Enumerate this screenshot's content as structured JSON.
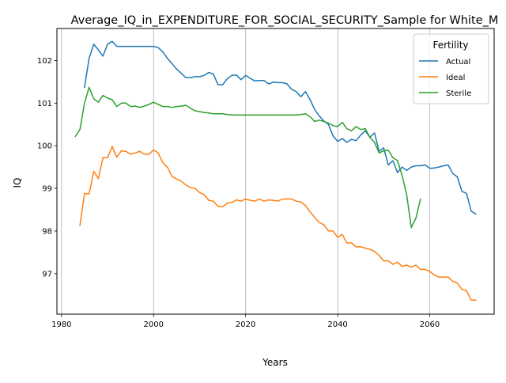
{
  "chart_data": {
    "type": "line",
    "title": "Average_IQ_in_EXPENDITURE_FOR_SOCIAL_SECURITY_Sample for White_M",
    "xlabel": "Years",
    "ylabel": "IQ",
    "xlim": [
      1979,
      2074
    ],
    "ylim": [
      96.05,
      102.75
    ],
    "xticks": [
      1980,
      2000,
      2020,
      2040,
      2060
    ],
    "yticks": [
      97,
      98,
      99,
      100,
      101,
      102
    ],
    "grid": "vertical",
    "legend": {
      "title": "Fertility",
      "placement": "top-right"
    },
    "series": [
      {
        "name": "Actual",
        "color": "#1f77b4",
        "x": [
          1985,
          1986,
          1987,
          1988,
          1989,
          1990,
          1991,
          1992,
          1993,
          1994,
          1995,
          1996,
          1997,
          1998,
          1999,
          2000,
          2001,
          2002,
          2003,
          2004,
          2005,
          2006,
          2007,
          2008,
          2009,
          2010,
          2011,
          2012,
          2013,
          2014,
          2015,
          2016,
          2017,
          2018,
          2019,
          2020,
          2021,
          2022,
          2023,
          2024,
          2025,
          2026,
          2027,
          2028,
          2029,
          2030,
          2031,
          2032,
          2033,
          2034,
          2035,
          2036,
          2037,
          2038,
          2039,
          2040,
          2041,
          2042,
          2043,
          2044,
          2045,
          2046,
          2047,
          2048,
          2049,
          2050,
          2051,
          2052,
          2053,
          2054,
          2055,
          2056,
          2057,
          2058,
          2059,
          2060,
          2061,
          2062,
          2063,
          2064,
          2065,
          2066,
          2067,
          2068,
          2069,
          2070
        ],
        "values": [
          101.37,
          102.05,
          102.38,
          102.25,
          102.1,
          102.38,
          102.45,
          102.33,
          102.33,
          102.33,
          102.33,
          102.33,
          102.33,
          102.33,
          102.33,
          102.33,
          102.3,
          102.2,
          102.05,
          101.93,
          101.8,
          101.7,
          101.6,
          101.6,
          101.62,
          101.62,
          101.65,
          101.72,
          101.68,
          101.43,
          101.43,
          101.57,
          101.65,
          101.66,
          101.55,
          101.65,
          101.58,
          101.52,
          101.53,
          101.53,
          101.45,
          101.49,
          101.48,
          101.48,
          101.45,
          101.32,
          101.27,
          101.15,
          101.27,
          101.08,
          100.85,
          100.7,
          100.58,
          100.5,
          100.23,
          100.1,
          100.17,
          100.08,
          100.15,
          100.12,
          100.25,
          100.35,
          100.2,
          100.3,
          99.87,
          99.95,
          99.55,
          99.65,
          99.37,
          99.5,
          99.42,
          99.5,
          99.53,
          99.53,
          99.55,
          99.47,
          99.48,
          99.5,
          99.53,
          99.55,
          99.35,
          99.27,
          98.93,
          98.88,
          98.47,
          98.4
        ]
      },
      {
        "name": "Ideal",
        "color": "#ff7f0e",
        "x": [
          1984,
          1985,
          1986,
          1987,
          1988,
          1989,
          1990,
          1991,
          1992,
          1993,
          1994,
          1995,
          1996,
          1997,
          1998,
          1999,
          2000,
          2001,
          2002,
          2003,
          2004,
          2005,
          2006,
          2007,
          2008,
          2009,
          2010,
          2011,
          2012,
          2013,
          2014,
          2015,
          2016,
          2017,
          2018,
          2019,
          2020,
          2021,
          2022,
          2023,
          2024,
          2025,
          2026,
          2027,
          2028,
          2029,
          2030,
          2031,
          2032,
          2033,
          2034,
          2035,
          2036,
          2037,
          2038,
          2039,
          2040,
          2041,
          2042,
          2043,
          2044,
          2045,
          2046,
          2047,
          2048,
          2049,
          2050,
          2051,
          2052,
          2053,
          2054,
          2055,
          2056,
          2057,
          2058,
          2059,
          2060,
          2061,
          2062,
          2063,
          2064,
          2065,
          2066,
          2067,
          2068,
          2069,
          2070
        ],
        "values": [
          98.13,
          98.88,
          98.87,
          99.4,
          99.23,
          99.72,
          99.72,
          99.98,
          99.73,
          99.88,
          99.87,
          99.8,
          99.83,
          99.87,
          99.8,
          99.8,
          99.9,
          99.83,
          99.6,
          99.5,
          99.28,
          99.22,
          99.17,
          99.08,
          99.02,
          99.0,
          98.9,
          98.85,
          98.72,
          98.7,
          98.58,
          98.57,
          98.65,
          98.67,
          98.73,
          98.7,
          98.75,
          98.72,
          98.7,
          98.75,
          98.7,
          98.73,
          98.72,
          98.7,
          98.75,
          98.75,
          98.75,
          98.7,
          98.68,
          98.6,
          98.45,
          98.32,
          98.2,
          98.15,
          98.0,
          98.0,
          97.85,
          97.92,
          97.72,
          97.72,
          97.63,
          97.63,
          97.6,
          97.57,
          97.52,
          97.43,
          97.3,
          97.3,
          97.22,
          97.27,
          97.17,
          97.2,
          97.15,
          97.2,
          97.1,
          97.1,
          97.05,
          96.97,
          96.92,
          96.92,
          96.92,
          96.82,
          96.78,
          96.63,
          96.6,
          96.38,
          96.38
        ]
      },
      {
        "name": "Sterile",
        "color": "#2ca02c",
        "x": [
          1983,
          1984,
          1985,
          1986,
          1987,
          1988,
          1989,
          1990,
          1991,
          1992,
          1993,
          1994,
          1995,
          1996,
          1997,
          1998,
          1999,
          2000,
          2001,
          2002,
          2003,
          2004,
          2005,
          2006,
          2007,
          2008,
          2009,
          2010,
          2011,
          2012,
          2013,
          2014,
          2015,
          2016,
          2017,
          2018,
          2019,
          2020,
          2021,
          2022,
          2023,
          2024,
          2025,
          2026,
          2027,
          2028,
          2029,
          2030,
          2031,
          2032,
          2033,
          2034,
          2035,
          2036,
          2037,
          2038,
          2039,
          2040,
          2041,
          2042,
          2043,
          2044,
          2045,
          2046,
          2047,
          2048,
          2049,
          2050,
          2051,
          2052,
          2053,
          2054,
          2055,
          2056,
          2057,
          2058
        ],
        "values": [
          100.22,
          100.38,
          101.0,
          101.37,
          101.1,
          101.02,
          101.18,
          101.12,
          101.08,
          100.92,
          101.0,
          101.0,
          100.92,
          100.93,
          100.9,
          100.93,
          100.97,
          101.02,
          100.97,
          100.92,
          100.92,
          100.9,
          100.92,
          100.93,
          100.95,
          100.88,
          100.82,
          100.8,
          100.78,
          100.77,
          100.75,
          100.75,
          100.75,
          100.73,
          100.72,
          100.72,
          100.72,
          100.72,
          100.72,
          100.72,
          100.72,
          100.72,
          100.72,
          100.72,
          100.72,
          100.72,
          100.72,
          100.72,
          100.72,
          100.73,
          100.75,
          100.68,
          100.57,
          100.6,
          100.57,
          100.53,
          100.47,
          100.45,
          100.55,
          100.4,
          100.35,
          100.45,
          100.38,
          100.4,
          100.2,
          100.08,
          99.83,
          99.88,
          99.9,
          99.72,
          99.65,
          99.3,
          98.85,
          98.08,
          98.3,
          98.75
        ]
      }
    ]
  }
}
